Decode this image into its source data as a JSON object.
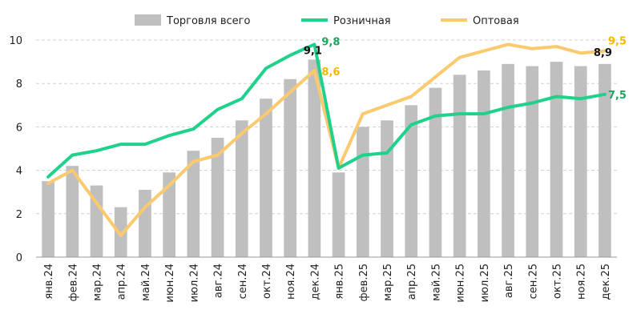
{
  "chart_data": {
    "type": "bar",
    "title": "",
    "xlabel": "",
    "ylabel": "",
    "ylim": [
      0,
      10
    ],
    "yticks": [
      0,
      2,
      4,
      6,
      8,
      10
    ],
    "grid": true,
    "legend_position": "top",
    "categories": [
      "янв.24",
      "фев.24",
      "мар.24",
      "апр.24",
      "май.24",
      "июн.24",
      "июл.24",
      "авг.24",
      "сен.24",
      "окт.24",
      "ноя.24",
      "дек.24",
      "янв.25",
      "фев.25",
      "мар.25",
      "апр.25",
      "май.25",
      "июн.25",
      "июл.25",
      "авг.25",
      "сен.25",
      "окт.25",
      "ноя.25",
      "дек.25"
    ],
    "series": [
      {
        "name": "Торговля всего",
        "type": "bar",
        "color": "#bfbfbf",
        "values": [
          3.5,
          4.2,
          3.3,
          2.3,
          3.1,
          3.9,
          4.9,
          5.5,
          6.3,
          7.3,
          8.2,
          9.1,
          3.9,
          6.0,
          6.3,
          7.0,
          7.8,
          8.4,
          8.6,
          8.9,
          8.8,
          9.0,
          8.8,
          8.9
        ]
      },
      {
        "name": "Розничная",
        "type": "line",
        "color": "#1fd18a",
        "values": [
          3.7,
          4.7,
          4.9,
          5.2,
          5.2,
          5.6,
          5.9,
          6.8,
          7.3,
          8.7,
          9.3,
          9.8,
          4.1,
          4.7,
          4.8,
          6.1,
          6.5,
          6.6,
          6.6,
          6.9,
          7.1,
          7.4,
          7.3,
          7.5
        ]
      },
      {
        "name": "Оптовая",
        "type": "line",
        "color": "#fbc96e",
        "values": [
          3.4,
          4.0,
          2.5,
          1.0,
          2.3,
          3.3,
          4.4,
          4.7,
          5.7,
          6.6,
          7.6,
          8.6,
          4.1,
          6.6,
          7.0,
          7.4,
          8.3,
          9.2,
          9.5,
          9.8,
          9.6,
          9.7,
          9.4,
          9.5
        ]
      }
    ],
    "annotations": [
      {
        "series": "Торговля всего",
        "index": 11,
        "text": "9,1",
        "color": "#111111"
      },
      {
        "series": "Розничная",
        "index": 11,
        "text": "9,8",
        "color": "#1aa860"
      },
      {
        "series": "Оптовая",
        "index": 11,
        "text": "8,6",
        "color": "#f5b800"
      },
      {
        "series": "Оптовая",
        "index": 23,
        "text": "9,5",
        "color": "#f5b800"
      },
      {
        "series": "Торговля всего",
        "index": 23,
        "text": "8,9",
        "color": "#111111"
      },
      {
        "series": "Розничная",
        "index": 23,
        "text": "7,5",
        "color": "#1aa860"
      }
    ]
  }
}
